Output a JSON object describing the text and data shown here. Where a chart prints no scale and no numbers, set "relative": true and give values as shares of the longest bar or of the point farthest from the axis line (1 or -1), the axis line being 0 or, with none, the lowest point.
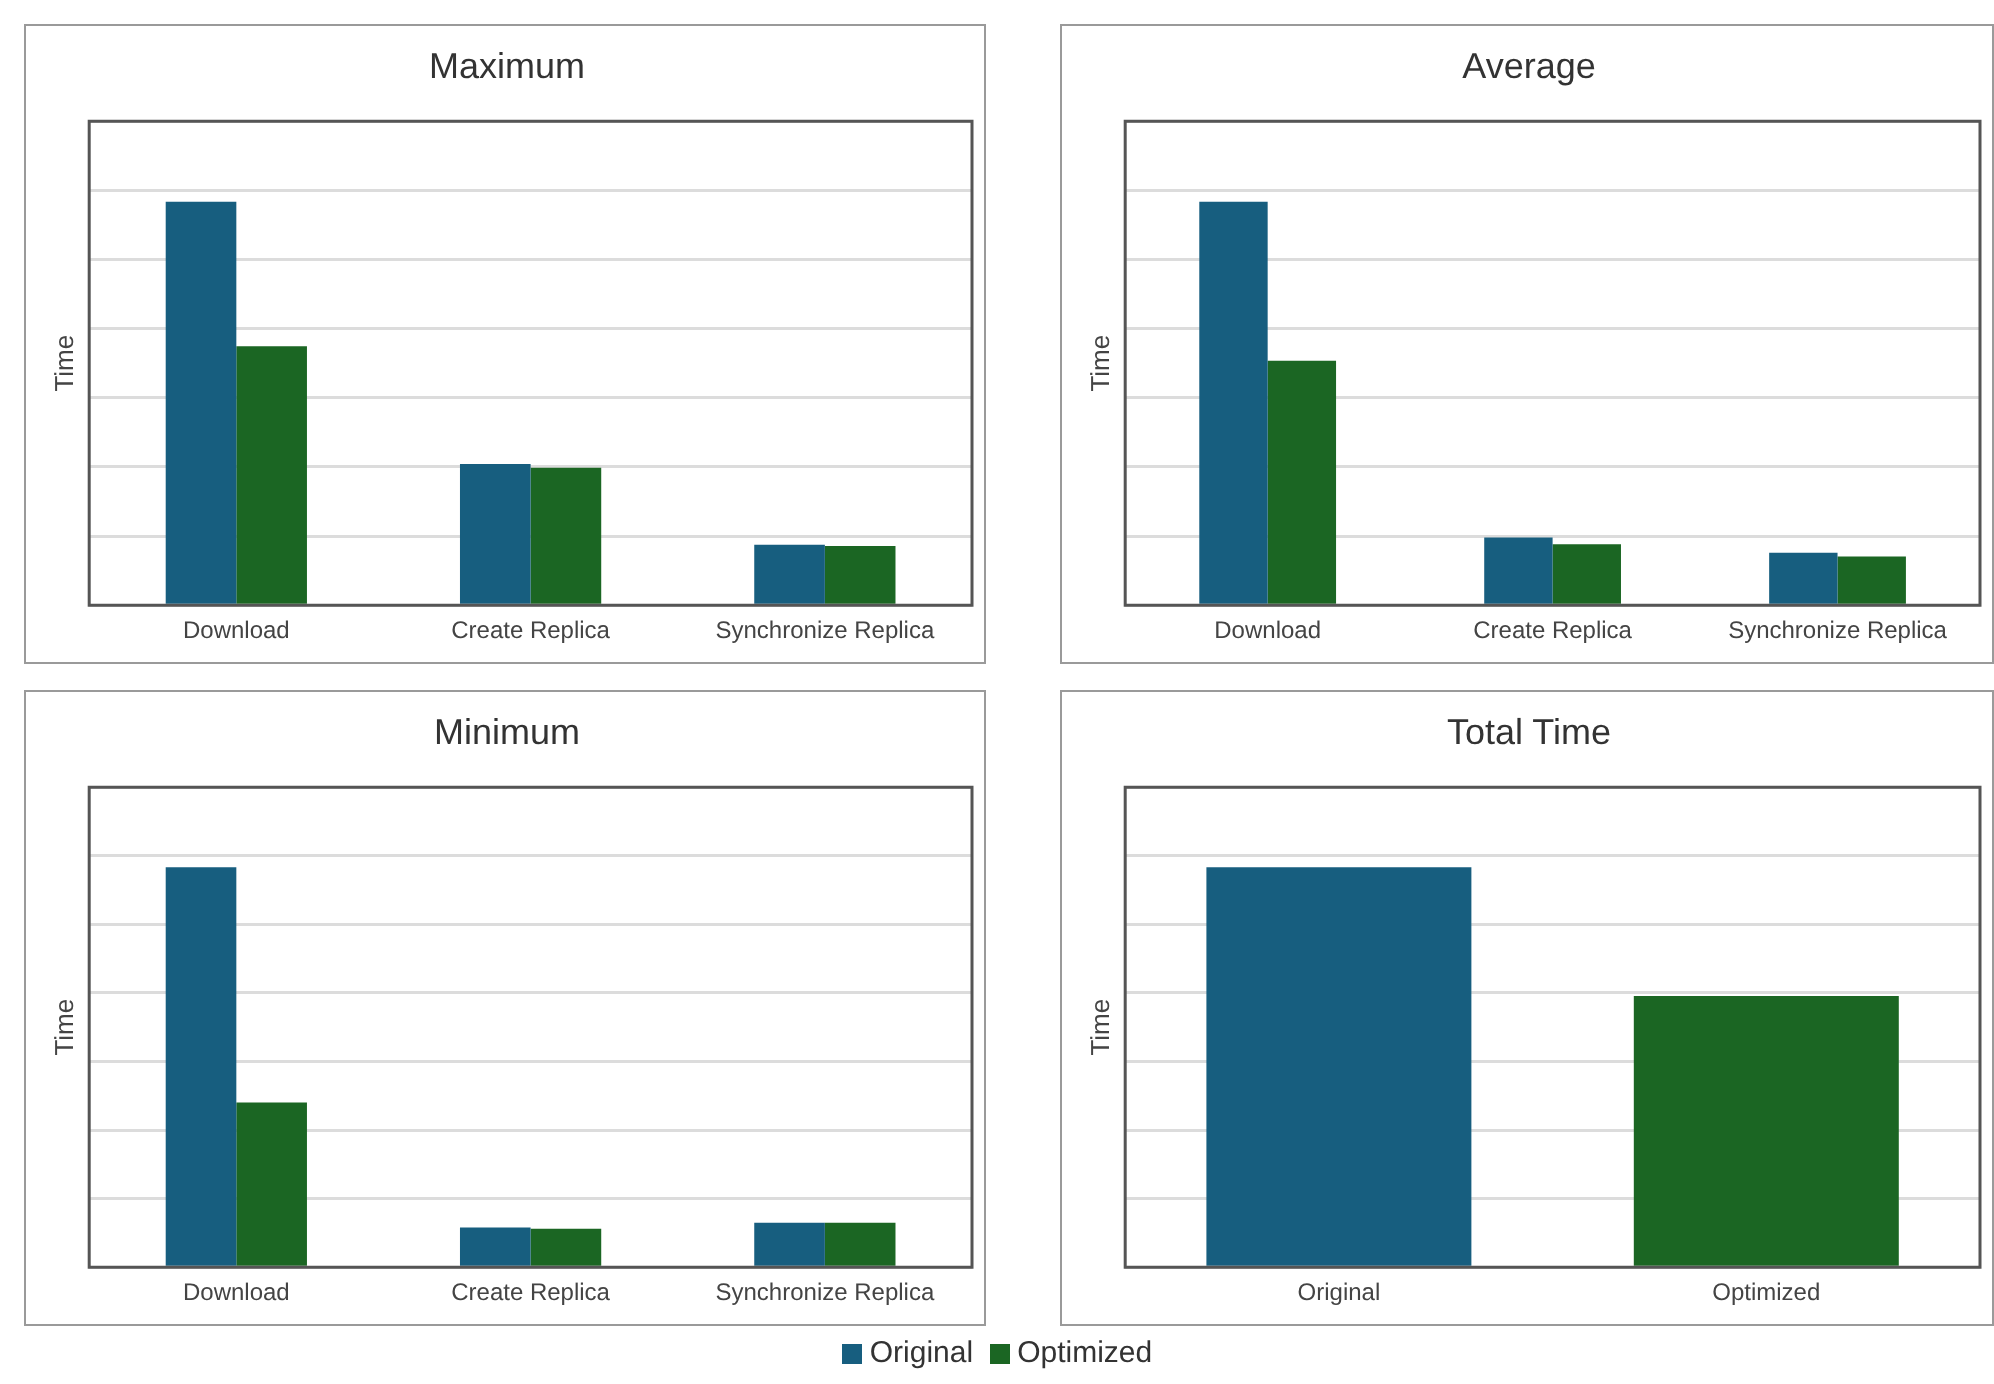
{
  "chart_data": [
    {
      "type": "bar",
      "title": "Maximum",
      "ylabel": "Time",
      "categories": [
        "Download",
        "Create Replica",
        "Synchronize Replica"
      ],
      "relative": true,
      "grid": "y",
      "legend": "bottom",
      "series": [
        {
          "name": "Original",
          "color": "#175e7f",
          "values": [
            1,
            0.35,
            0.15
          ]
        },
        {
          "name": "Optimized",
          "color": "#1b6623",
          "values": [
            0.642,
            0.341,
            0.147
          ]
        }
      ]
    },
    {
      "type": "bar",
      "title": "Average",
      "ylabel": "Time",
      "categories": [
        "Download",
        "Create Replica",
        "Synchronize Replica"
      ],
      "relative": true,
      "grid": "y",
      "series": [
        {
          "color": "#175e7f",
          "values": [
            1,
            0.168,
            0.13
          ]
        },
        {
          "color": "#1b6623",
          "values": [
            0.606,
            0.151,
            0.121
          ]
        }
      ]
    },
    {
      "type": "bar",
      "title": "Minimum",
      "ylabel": "Time",
      "categories": [
        "Download",
        "Create Replica",
        "Synchronize Replica"
      ],
      "relative": true,
      "grid": "y",
      "series": [
        {
          "color": "#175e7f",
          "values": [
            1,
            0.099,
            0.111
          ]
        },
        {
          "color": "#1b6623",
          "values": [
            0.412,
            0.096,
            0.111
          ]
        }
      ]
    },
    {
      "type": "bar",
      "title": "Total Time",
      "ylabel": "Time",
      "categories": [
        "Original",
        "Optimized"
      ],
      "relative": true,
      "grid": "y",
      "values": [
        1,
        0.678
      ],
      "colors": [
        "#175e7f",
        "#1b6623"
      ]
    }
  ]
}
